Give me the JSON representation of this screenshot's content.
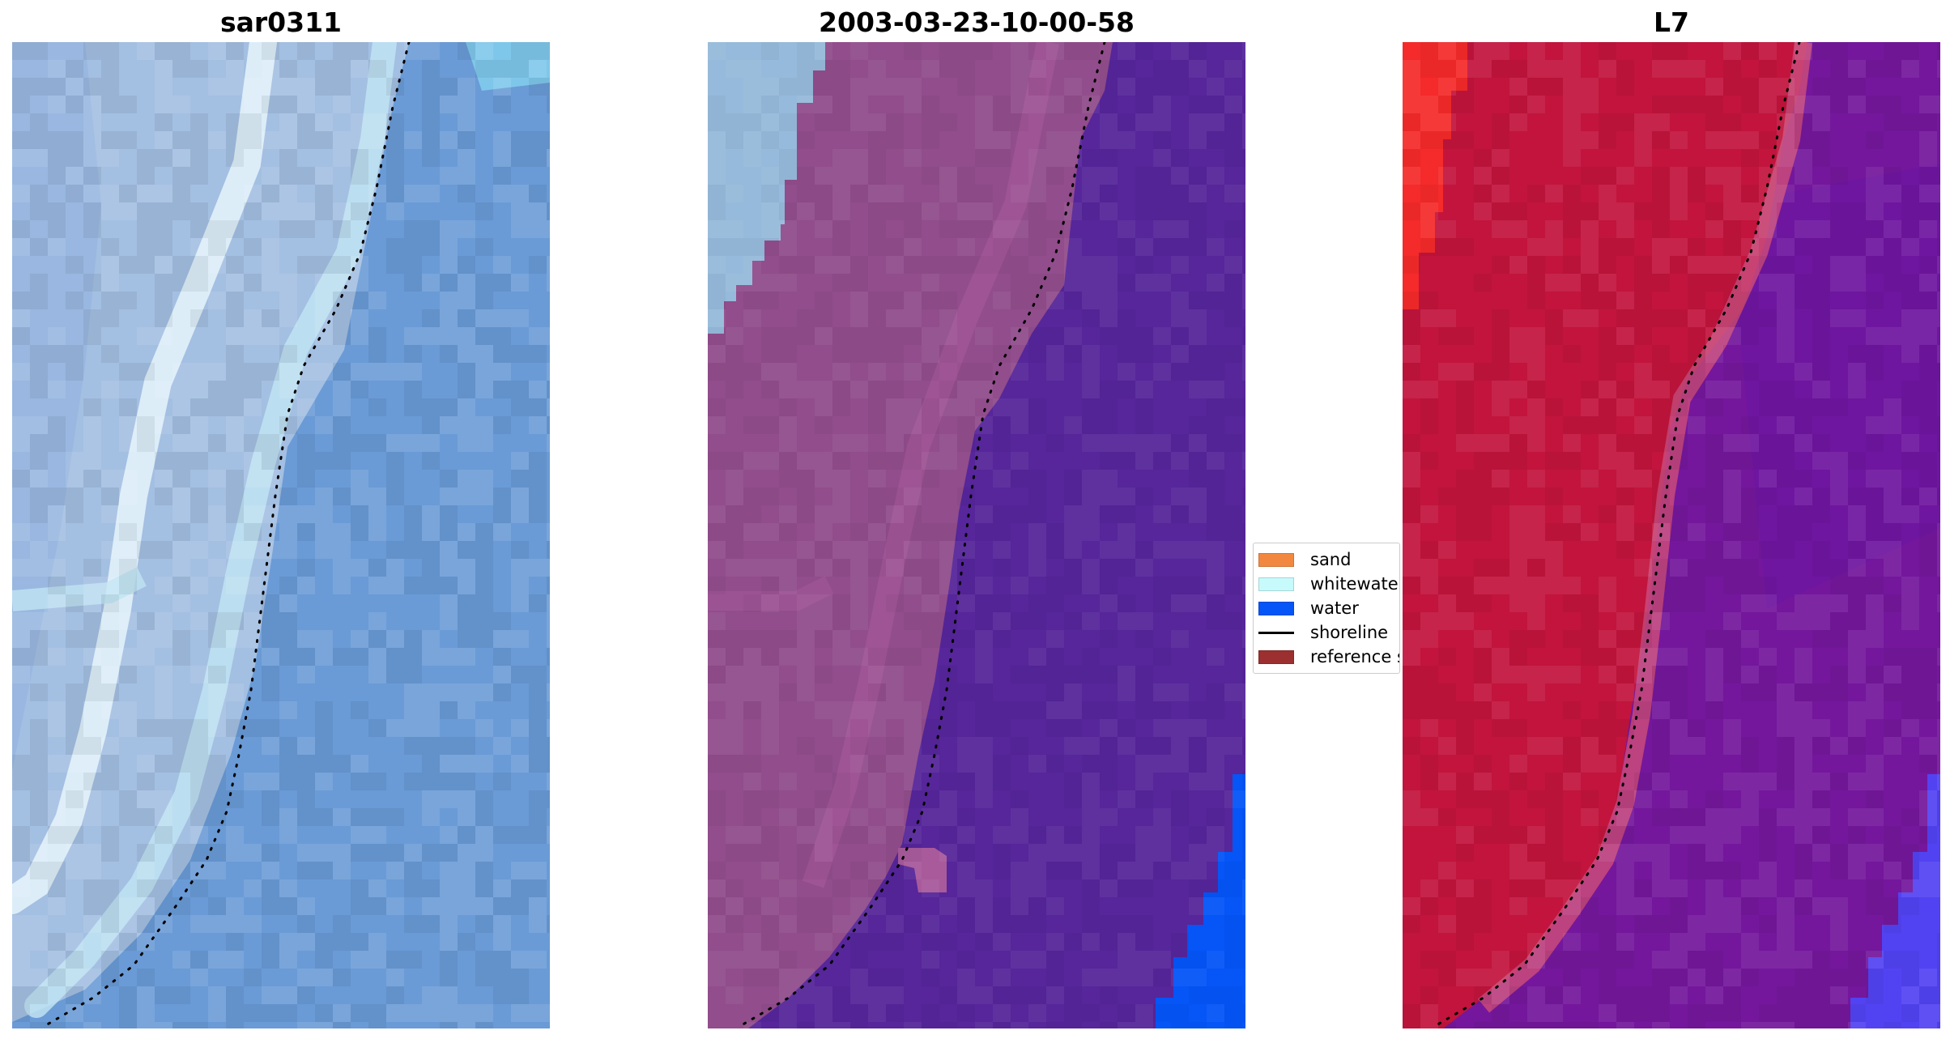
{
  "panels": {
    "sar": {
      "title": "sar0311",
      "colors": {
        "water": "#6a9bd6",
        "water_light": "#79abe0",
        "land": "#a3bfe2",
        "land_alt": "#8fb0dd",
        "whitewater": "#e2f2fb",
        "whitewater_mid": "#bfe3f2",
        "corner": "#7fc7ea"
      }
    },
    "classification": {
      "title": "2003-03-23-10-00-58",
      "colors": {
        "land": "#914d8c",
        "land_light": "#a85a9b",
        "water": "#56269a",
        "deep_water": "#0555f7",
        "whitewater_over": "#96badb"
      }
    },
    "l7": {
      "title": "L7",
      "colors": {
        "land": "#c2143d",
        "land_alt": "#b81040",
        "sand_bright": "#f52a2a",
        "transition": "#c94a7b",
        "water": "#74179c",
        "water_alt": "#6c16a4",
        "deep_water": "#5243f2"
      }
    }
  },
  "legend": {
    "items": [
      {
        "label": "sand",
        "color": "#f28840",
        "kind": "patch"
      },
      {
        "label": "whitewater",
        "color": "#c6fafb",
        "kind": "patch"
      },
      {
        "label": "water",
        "color": "#0555f7",
        "kind": "patch"
      },
      {
        "label": "shoreline",
        "color": "#000000",
        "kind": "line"
      },
      {
        "label": "reference shoreline",
        "color": "#9c2f2f",
        "kind": "patch"
      }
    ]
  }
}
